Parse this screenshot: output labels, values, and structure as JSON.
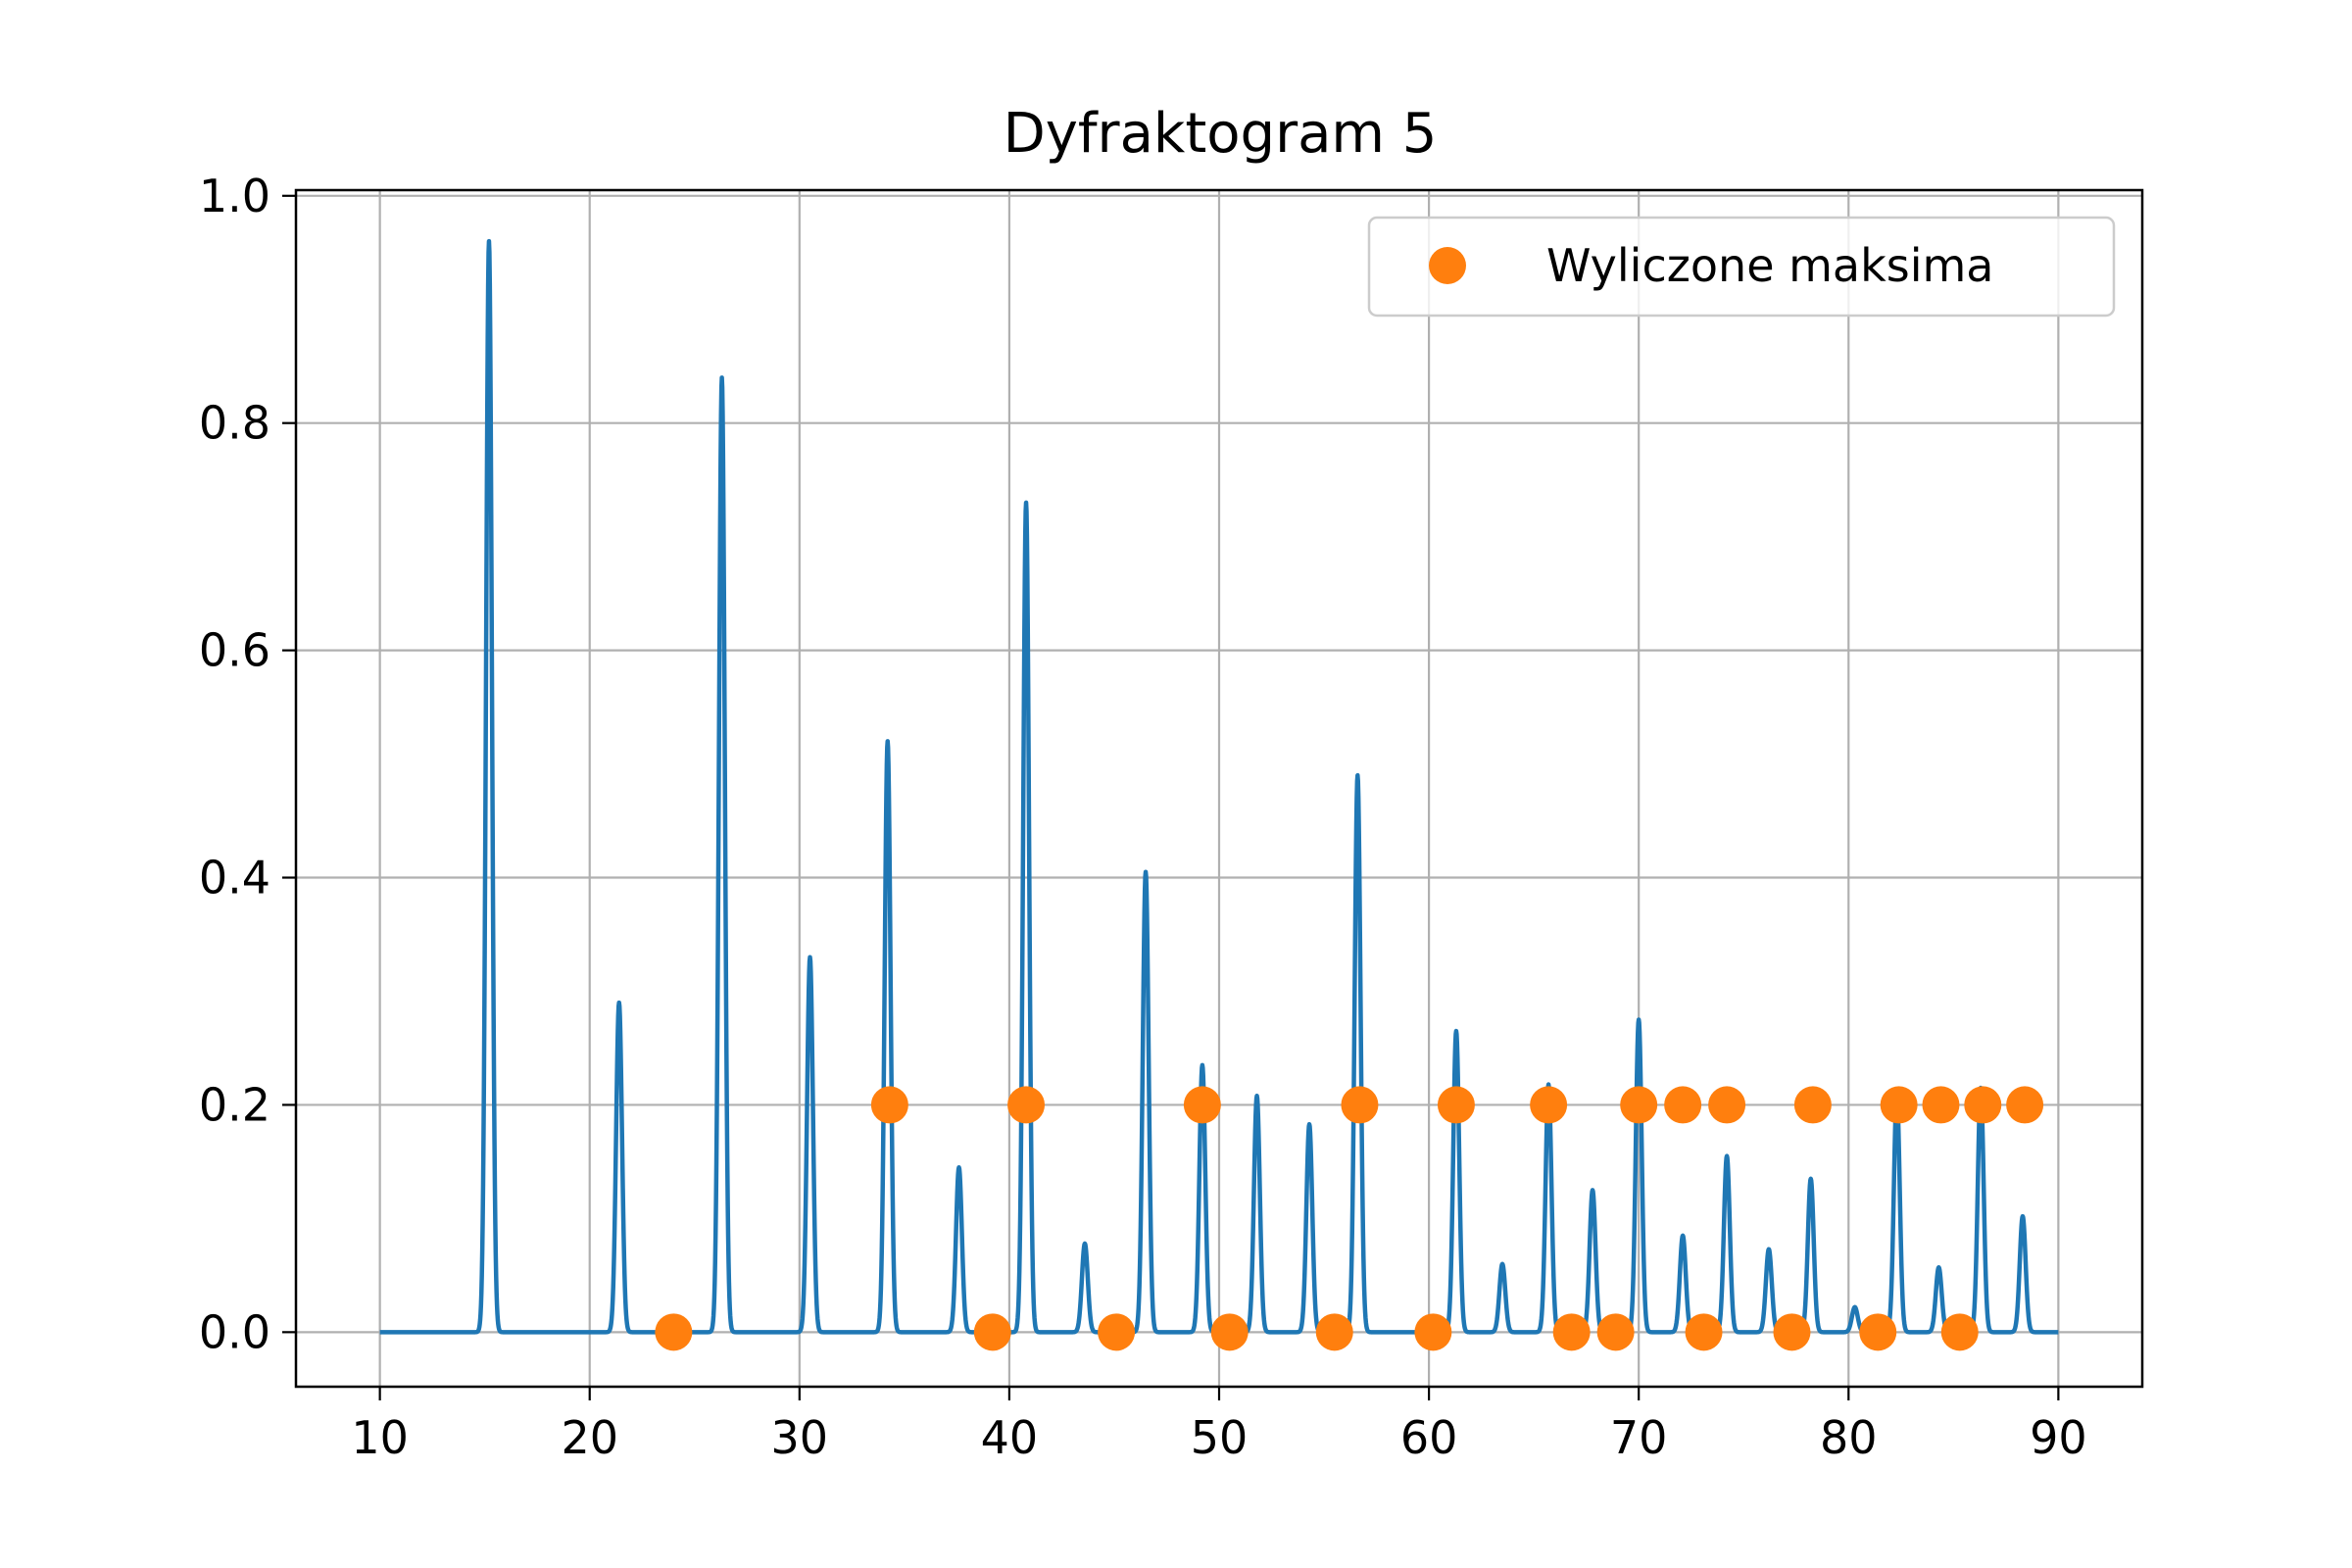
{
  "chart_data": {
    "type": "line",
    "title": "Dyfraktogram 5",
    "xlabel": "",
    "ylabel": "",
    "xlim": [
      6,
      94
    ],
    "ylim": [
      -0.048,
      1.005
    ],
    "x_ticks": [
      10,
      20,
      30,
      40,
      50,
      60,
      70,
      80,
      90
    ],
    "x_tick_labels": [
      "10",
      "20",
      "30",
      "40",
      "50",
      "60",
      "70",
      "80",
      "90"
    ],
    "y_ticks": [
      0.0,
      0.2,
      0.4,
      0.6,
      0.8,
      1.0
    ],
    "y_tick_labels": [
      "0.0",
      "0.2",
      "0.4",
      "0.6",
      "0.8",
      "1.0"
    ],
    "grid": true,
    "legend_position": "top-right",
    "colors": {
      "line": "#1f77b4",
      "markers": "#ff7f0e",
      "grid": "#b0b0b0"
    },
    "line_series": {
      "x_range": [
        10,
        90
      ],
      "baseline": 0.0,
      "peaks": [
        {
          "x": 15.2,
          "y": 0.96
        },
        {
          "x": 21.4,
          "y": 0.29
        },
        {
          "x": 26.3,
          "y": 0.84
        },
        {
          "x": 30.5,
          "y": 0.33
        },
        {
          "x": 34.2,
          "y": 0.52
        },
        {
          "x": 37.6,
          "y": 0.145
        },
        {
          "x": 40.8,
          "y": 0.73
        },
        {
          "x": 43.6,
          "y": 0.078
        },
        {
          "x": 46.5,
          "y": 0.405
        },
        {
          "x": 49.2,
          "y": 0.235
        },
        {
          "x": 51.8,
          "y": 0.208
        },
        {
          "x": 54.3,
          "y": 0.183
        },
        {
          "x": 56.6,
          "y": 0.49
        },
        {
          "x": 61.3,
          "y": 0.265
        },
        {
          "x": 63.5,
          "y": 0.06
        },
        {
          "x": 65.7,
          "y": 0.218
        },
        {
          "x": 67.8,
          "y": 0.125
        },
        {
          "x": 70.0,
          "y": 0.275
        },
        {
          "x": 72.1,
          "y": 0.085
        },
        {
          "x": 74.2,
          "y": 0.155
        },
        {
          "x": 76.2,
          "y": 0.073
        },
        {
          "x": 78.2,
          "y": 0.135
        },
        {
          "x": 80.3,
          "y": 0.022
        },
        {
          "x": 82.3,
          "y": 0.21
        },
        {
          "x": 84.3,
          "y": 0.057
        },
        {
          "x": 86.3,
          "y": 0.215
        },
        {
          "x": 88.3,
          "y": 0.102
        }
      ]
    },
    "marker_series": {
      "name": "Wyliczone maksima",
      "points": [
        {
          "x": 24.0,
          "y": 0.0
        },
        {
          "x": 34.3,
          "y": 0.2
        },
        {
          "x": 39.2,
          "y": 0.0
        },
        {
          "x": 40.8,
          "y": 0.2
        },
        {
          "x": 45.1,
          "y": 0.0
        },
        {
          "x": 49.2,
          "y": 0.2
        },
        {
          "x": 50.5,
          "y": 0.0
        },
        {
          "x": 55.5,
          "y": 0.0
        },
        {
          "x": 56.7,
          "y": 0.2
        },
        {
          "x": 60.2,
          "y": 0.0
        },
        {
          "x": 61.3,
          "y": 0.2
        },
        {
          "x": 65.7,
          "y": 0.2
        },
        {
          "x": 66.8,
          "y": 0.0
        },
        {
          "x": 68.9,
          "y": 0.0
        },
        {
          "x": 70.0,
          "y": 0.2
        },
        {
          "x": 72.1,
          "y": 0.2
        },
        {
          "x": 73.1,
          "y": 0.0
        },
        {
          "x": 74.2,
          "y": 0.2
        },
        {
          "x": 77.3,
          "y": 0.0
        },
        {
          "x": 78.3,
          "y": 0.2
        },
        {
          "x": 81.4,
          "y": 0.0
        },
        {
          "x": 82.4,
          "y": 0.2
        },
        {
          "x": 84.4,
          "y": 0.2
        },
        {
          "x": 85.3,
          "y": 0.0
        },
        {
          "x": 86.4,
          "y": 0.2
        },
        {
          "x": 88.4,
          "y": 0.2
        }
      ]
    }
  }
}
